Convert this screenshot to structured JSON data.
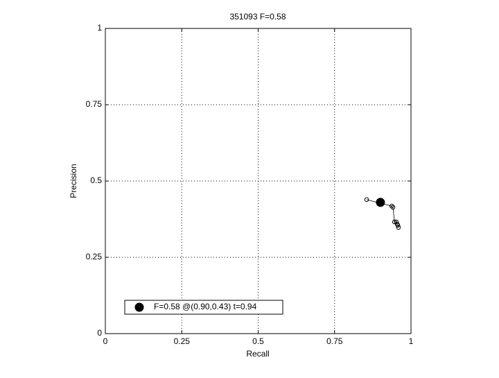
{
  "chart_data": {
    "type": "line",
    "title": "351093 F=0.58",
    "x_label": "Recall",
    "y_label": "Precision",
    "xlim": [
      0,
      1
    ],
    "ylim": [
      0,
      1
    ],
    "xticks": [
      0,
      0.25,
      0.5,
      0.75,
      1
    ],
    "yticks": [
      0,
      0.25,
      0.5,
      0.75,
      1
    ],
    "grid": true,
    "legend": "lower-left",
    "series": [
      {
        "color": "#000000",
        "marker": "open-circle",
        "x": [
          0.855,
          0.937,
          0.941,
          0.946,
          0.952,
          0.955,
          0.957,
          0.959
        ],
        "values": [
          0.439,
          0.418,
          0.414,
          0.366,
          0.366,
          0.359,
          0.355,
          0.348
        ]
      },
      {
        "name": "F=0.58 @(0.90,0.43) t=0.94",
        "color": "#000000",
        "marker": "filled-circle",
        "x": [
          0.9
        ],
        "values": [
          0.43
        ]
      }
    ]
  }
}
